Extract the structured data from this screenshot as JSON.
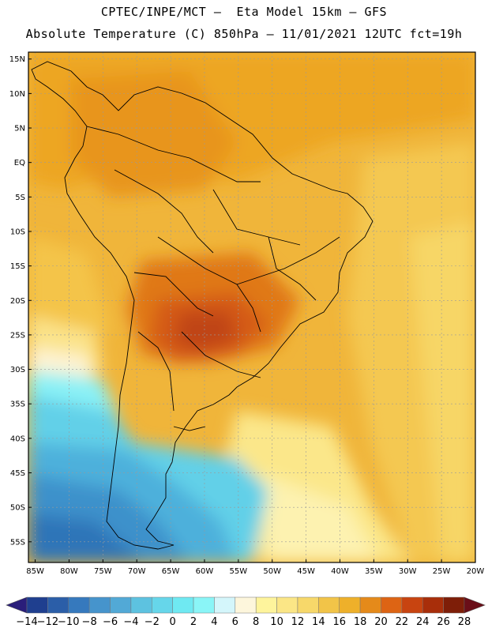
{
  "header": {
    "line1": "CPTEC/INPE/MCT –  Eta Model 15km – GFS",
    "line2": "Absolute Temperature (C) 850hPa – 11/01/2021 12UTC fct=19h"
  },
  "map": {
    "lat_labels": [
      "15N",
      "10N",
      "5N",
      "EQ",
      "5S",
      "10S",
      "15S",
      "20S",
      "25S",
      "30S",
      "35S",
      "40S",
      "45S",
      "50S",
      "55S"
    ],
    "lon_labels": [
      "85W",
      "80W",
      "75W",
      "70W",
      "65W",
      "60W",
      "55W",
      "50W",
      "45W",
      "40W",
      "35W",
      "30W",
      "25W",
      "20W"
    ],
    "lat_range": [
      -58,
      16
    ],
    "lon_range": [
      -86,
      -20
    ]
  },
  "colorbar": {
    "labels": [
      "-14",
      "-12",
      "-10",
      "-8",
      "-6",
      "-4",
      "-2",
      "0",
      "2",
      "4",
      "6",
      "8",
      "10",
      "12",
      "14",
      "16",
      "18",
      "20",
      "22",
      "24",
      "26",
      "28"
    ],
    "colors": [
      "#1f3f8f",
      "#2b5ea8",
      "#3679bd",
      "#4694cc",
      "#52a9d6",
      "#5dc2e0",
      "#66d6ea",
      "#6fe9f2",
      "#8af5f7",
      "#d4f6fb",
      "#fdf6dc",
      "#fef49c",
      "#fbe686",
      "#f7d86a",
      "#f2c448",
      "#eeb02a",
      "#e58a1a",
      "#dd6414",
      "#c84410",
      "#a82e0a",
      "#7e1e08"
    ],
    "under_color": "#2a1e7a",
    "over_color": "#6a0e18"
  }
}
